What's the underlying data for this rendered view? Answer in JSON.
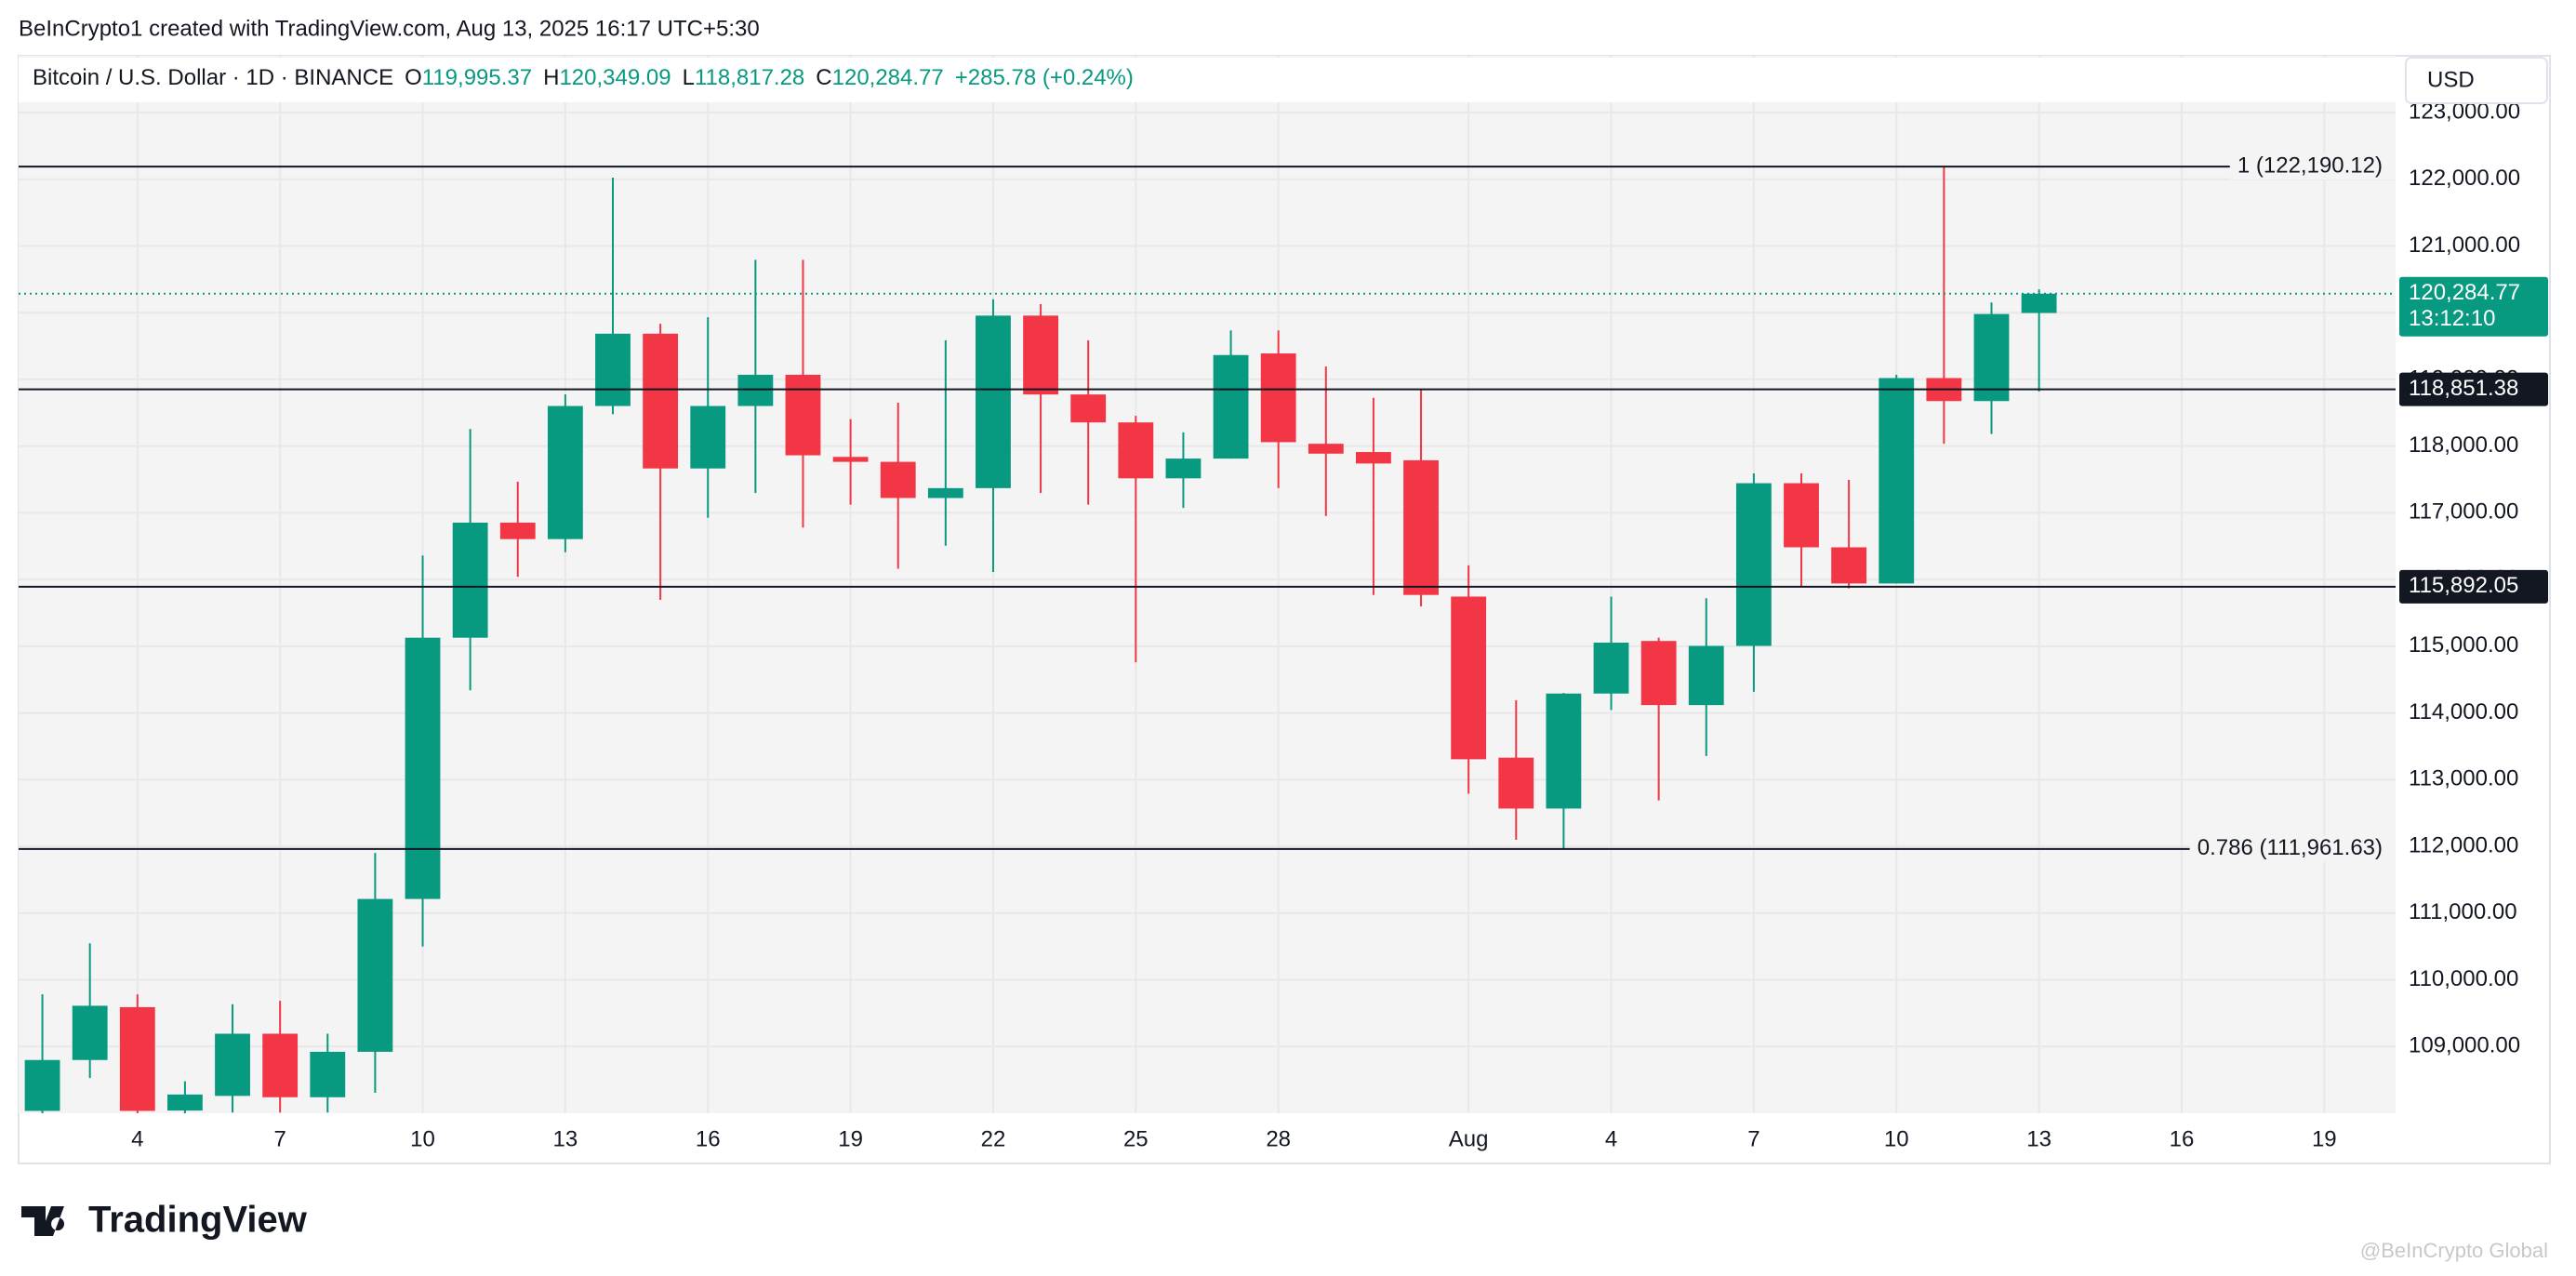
{
  "header": {
    "attribution": "BeInCrypto1 created with TradingView.com, Aug 13, 2025 16:17 UTC+5:30",
    "symbol": "Bitcoin / U.S. Dollar · 1D · BINANCE",
    "o_label": "O",
    "o_value": "119,995.37",
    "h_label": "H",
    "h_value": "120,349.09",
    "l_label": "L",
    "l_value": "118,817.28",
    "c_label": "C",
    "c_value": "120,284.77",
    "change": "+285.78 (+0.24%)",
    "currency": "USD"
  },
  "footer": {
    "logo": "TradingView",
    "watermark": "@BeInCrypto Global"
  },
  "chart_data": {
    "type": "candlestick",
    "up_color": "#089981",
    "down_color": "#f23645",
    "grid": true,
    "x": [
      "2025-07-02",
      "2025-07-03",
      "2025-07-04",
      "2025-07-05",
      "2025-07-06",
      "2025-07-07",
      "2025-07-08",
      "2025-07-09",
      "2025-07-10",
      "2025-07-11",
      "2025-07-12",
      "2025-07-13",
      "2025-07-14",
      "2025-07-15",
      "2025-07-16",
      "2025-07-17",
      "2025-07-18",
      "2025-07-19",
      "2025-07-20",
      "2025-07-21",
      "2025-07-22",
      "2025-07-23",
      "2025-07-24",
      "2025-07-25",
      "2025-07-26",
      "2025-07-27",
      "2025-07-28",
      "2025-07-29",
      "2025-07-30",
      "2025-07-31",
      "2025-08-01",
      "2025-08-02",
      "2025-08-03",
      "2025-08-04",
      "2025-08-05",
      "2025-08-06",
      "2025-08-07",
      "2025-08-08",
      "2025-08-09",
      "2025-08-10",
      "2025-08-11",
      "2025-08-12",
      "2025-08-13"
    ],
    "open": [
      108035,
      108798,
      109590,
      108040,
      108260,
      109192,
      108240,
      108921,
      111212,
      115128,
      116853,
      116606,
      118601,
      119685,
      117665,
      118601,
      119069,
      117838,
      117764,
      117222,
      117370,
      119956,
      118774,
      118355,
      117517,
      117813,
      119389,
      118035,
      117911,
      117788,
      115744,
      113330,
      112567,
      114291,
      115079,
      114118,
      115005,
      117444,
      116483,
      115941,
      119020,
      118675,
      119995.37
    ],
    "high": [
      109783,
      110547,
      109783,
      108480,
      109635,
      109685,
      109192,
      111902,
      116360,
      118256,
      117468,
      118774,
      122025,
      119833,
      119931,
      120793,
      120793,
      118404,
      118650,
      119586,
      120202,
      120128,
      119586,
      118453,
      118207,
      119734,
      119734,
      119192,
      118724,
      118847,
      116212,
      114192,
      114300,
      115744,
      115128,
      115719,
      117591,
      117591,
      117493,
      119069,
      122190,
      120153,
      120349.09
    ],
    "low": [
      107950,
      108528,
      107990,
      107980,
      108010,
      108010,
      108010,
      108306,
      110498,
      114340,
      116040,
      116409,
      118478,
      115695,
      116926,
      117296,
      116779,
      117123,
      116163,
      116508,
      116114,
      117296,
      117123,
      114759,
      117074,
      117813,
      117370,
      116951,
      115769,
      115596,
      112789,
      112099,
      111951,
      114045,
      112690,
      113355,
      114316,
      115892,
      115867,
      115941,
      118035,
      118182,
      118817.28
    ],
    "close": [
      108798,
      109611,
      108035,
      108281,
      109192,
      108240,
      108921,
      111212,
      115128,
      116853,
      116606,
      118601,
      119685,
      117665,
      118601,
      119069,
      117862,
      117764,
      117222,
      117370,
      119956,
      118774,
      118355,
      117517,
      117813,
      119365,
      118059,
      117887,
      117739,
      115769,
      113306,
      112567,
      114291,
      115054,
      114118,
      115005,
      117444,
      116483,
      115941,
      119020,
      118675,
      119980,
      120284.77
    ],
    "xlim": [
      "2025-07-02",
      "2025-08-20"
    ],
    "xticks": [
      {
        "value": "2025-07-04",
        "label": "4"
      },
      {
        "value": "2025-07-07",
        "label": "7"
      },
      {
        "value": "2025-07-10",
        "label": "10"
      },
      {
        "value": "2025-07-13",
        "label": "13"
      },
      {
        "value": "2025-07-16",
        "label": "16"
      },
      {
        "value": "2025-07-19",
        "label": "19"
      },
      {
        "value": "2025-07-22",
        "label": "22"
      },
      {
        "value": "2025-07-25",
        "label": "25"
      },
      {
        "value": "2025-07-28",
        "label": "28"
      },
      {
        "value": "2025-08-01",
        "label": "Aug"
      },
      {
        "value": "2025-08-04",
        "label": "4"
      },
      {
        "value": "2025-08-07",
        "label": "7"
      },
      {
        "value": "2025-08-10",
        "label": "10"
      },
      {
        "value": "2025-08-13",
        "label": "13"
      },
      {
        "value": "2025-08-16",
        "label": "16"
      },
      {
        "value": "2025-08-19",
        "label": "19"
      }
    ],
    "ylim": [
      108000,
      123000
    ],
    "yticks": [
      {
        "value": 109000,
        "label": "109,000.00"
      },
      {
        "value": 110000,
        "label": "110,000.00"
      },
      {
        "value": 111000,
        "label": "111,000.00"
      },
      {
        "value": 112000,
        "label": "112,000.00"
      },
      {
        "value": 113000,
        "label": "113,000.00"
      },
      {
        "value": 114000,
        "label": "114,000.00"
      },
      {
        "value": 115000,
        "label": "115,000.00"
      },
      {
        "value": 116000,
        "label": "116,000.00"
      },
      {
        "value": 117000,
        "label": "117,000.00"
      },
      {
        "value": 118000,
        "label": "118,000.00"
      },
      {
        "value": 119000,
        "label": "119,000.00"
      },
      {
        "value": 120000,
        "label": "120,000.00"
      },
      {
        "value": 121000,
        "label": "121,000.00"
      },
      {
        "value": 122000,
        "label": "122,000.00"
      },
      {
        "value": 123000,
        "label": "123,000.00"
      }
    ],
    "fib_levels": [
      {
        "value": 122190.12,
        "label": "1 (122,190.12)"
      },
      {
        "value": 111961.63,
        "label": "0.786 (111,961.63)"
      }
    ],
    "price_lines": [
      {
        "value": 118851.38,
        "label": "118,851.38"
      },
      {
        "value": 115892.05,
        "label": "115,892.05"
      }
    ],
    "last_price": {
      "value": 120284.77,
      "label": "120,284.77",
      "countdown": "13:12:10"
    }
  }
}
